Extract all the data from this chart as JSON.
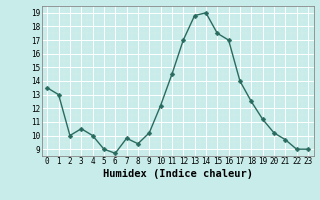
{
  "x": [
    0,
    1,
    2,
    3,
    4,
    5,
    6,
    7,
    8,
    9,
    10,
    11,
    12,
    13,
    14,
    15,
    16,
    17,
    18,
    19,
    20,
    21,
    22,
    23
  ],
  "y": [
    13.5,
    13.0,
    10.0,
    10.5,
    10.0,
    9.0,
    8.7,
    9.8,
    9.4,
    10.2,
    12.2,
    14.5,
    17.0,
    18.8,
    19.0,
    17.5,
    17.0,
    14.0,
    12.5,
    11.2,
    10.2,
    9.7,
    9.0,
    9.0
  ],
  "xlabel": "Humidex (Indice chaleur)",
  "bg_color": "#c8ece9",
  "line_color": "#2a6b5f",
  "marker_color": "#2a6b5f",
  "grid_major_color": "#ffffff",
  "grid_minor_color": "#d8edea",
  "ylim": [
    8.5,
    19.5
  ],
  "xlim": [
    -0.5,
    23.5
  ],
  "yticks": [
    9,
    10,
    11,
    12,
    13,
    14,
    15,
    16,
    17,
    18,
    19
  ],
  "xticks": [
    0,
    1,
    2,
    3,
    4,
    5,
    6,
    7,
    8,
    9,
    10,
    11,
    12,
    13,
    14,
    15,
    16,
    17,
    18,
    19,
    20,
    21,
    22,
    23
  ],
  "tick_fontsize": 5.5,
  "xlabel_fontsize": 7.5,
  "marker_size": 2.5,
  "line_width": 1.0
}
